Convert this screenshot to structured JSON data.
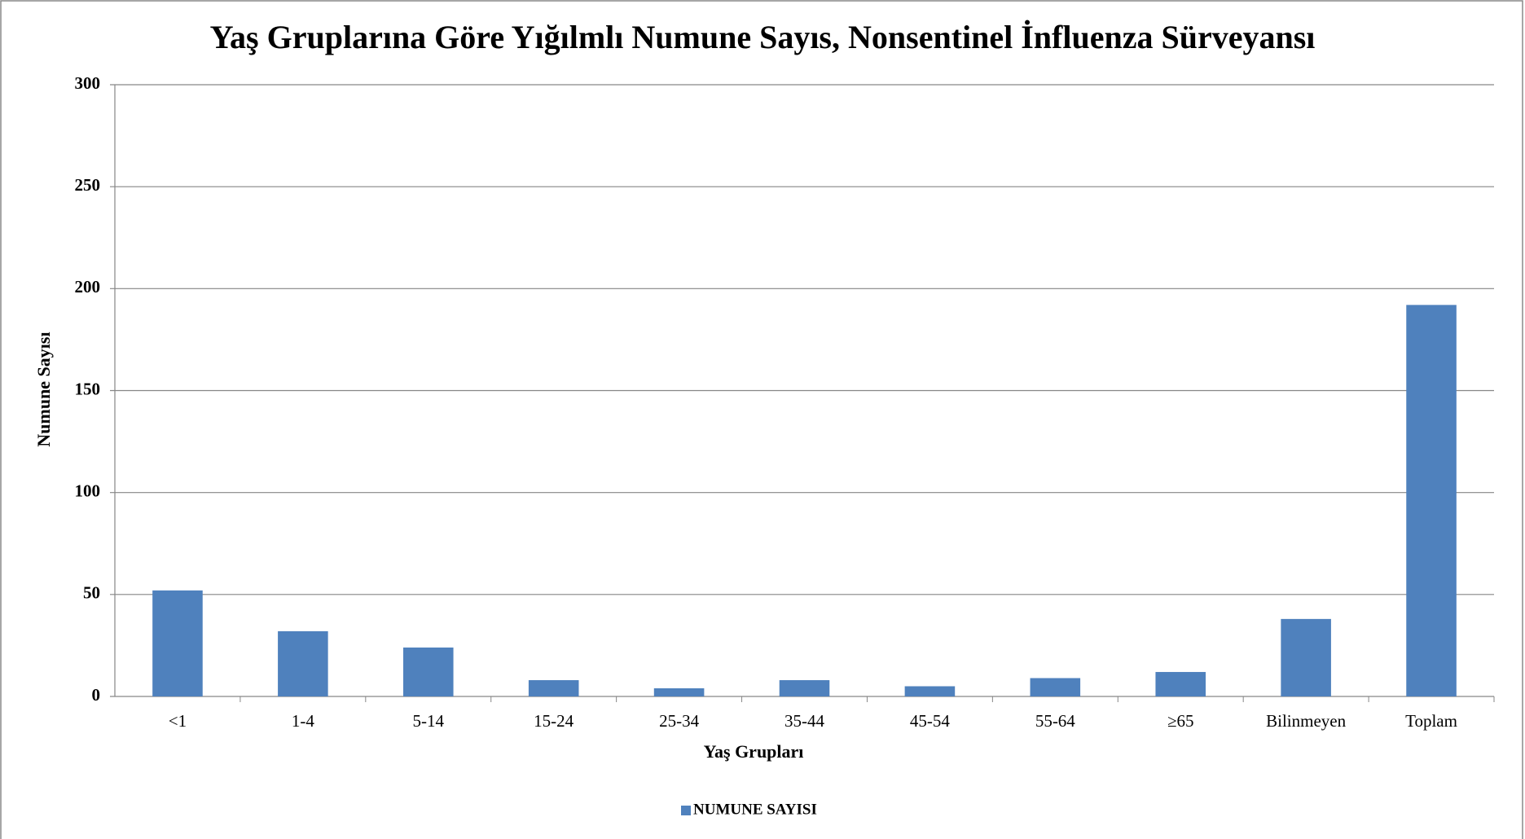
{
  "chart_data": {
    "type": "bar",
    "title": "Yaş Gruplarına Göre Yığılmlı Numune Sayıs, Nonsentinel İnfluenza Sürveyansı",
    "x_label": "Yaş Grupları",
    "y_label": "Numune  Sayısı",
    "categories": [
      "<1",
      "1-4",
      "5-14",
      "15-24",
      "25-34",
      "35-44",
      "45-54",
      "55-64",
      "≥65",
      "Bilinmeyen",
      "Toplam"
    ],
    "series": [
      {
        "name": "NUMUNE SAYISI",
        "color": "#4f81bd",
        "values": [
          52,
          32,
          24,
          8,
          4,
          8,
          5,
          9,
          12,
          38,
          192
        ]
      }
    ],
    "ylim": [
      0,
      300
    ],
    "yticks": [
      0,
      50,
      100,
      150,
      200,
      250,
      300
    ],
    "grid": true,
    "legend": "bottom"
  }
}
